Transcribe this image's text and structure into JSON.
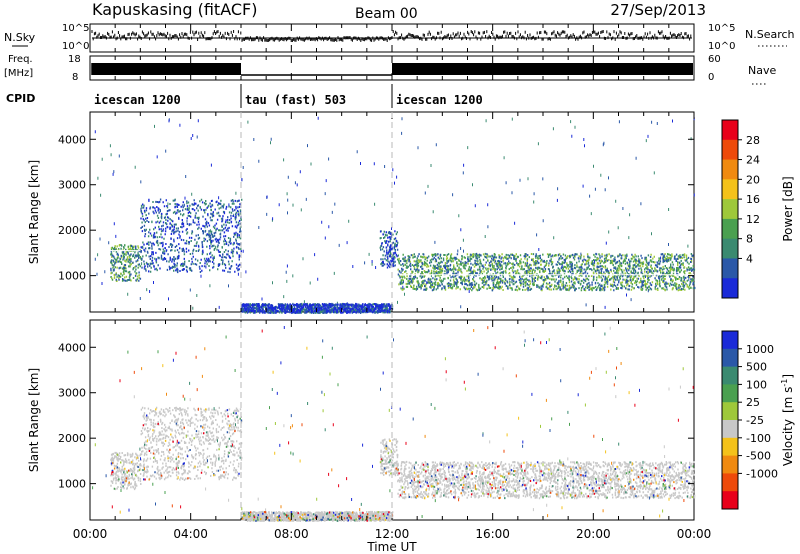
{
  "header": {
    "station": "Kapuskasing (fitACF)",
    "beam": "Beam 00",
    "date": "27/Sep/2013"
  },
  "summary_panels": {
    "nsky_label": "N.Sky",
    "nsearch_label": "N.Search",
    "freq_label_top": "Freq.",
    "freq_label_unit": "[MHz]",
    "nave_label": "Nave",
    "cpid_label": "CPID",
    "noise_left_ticks": [
      "10^5",
      "10^0"
    ],
    "noise_right_ticks": [
      "10^5",
      "10^0"
    ],
    "freq_left_ticks": [
      "18",
      "8"
    ],
    "nave_right_ticks": [
      "60",
      "0"
    ],
    "cpid_segments": [
      {
        "label": "icescan 1200",
        "start": 0,
        "end": 6
      },
      {
        "label": "tau (fast) 503",
        "start": 6,
        "end": 12
      },
      {
        "label": "icescan 1200",
        "start": 12,
        "end": 24
      }
    ]
  },
  "power_colorbar": {
    "label": "Power [dB]",
    "ticks": [
      "28",
      "24",
      "20",
      "16",
      "12",
      "8",
      "4"
    ],
    "colors": [
      "#e8001a",
      "#ee4a0a",
      "#f08a10",
      "#f4c21a",
      "#9ec83a",
      "#4aa050",
      "#3a8a70",
      "#2a58a8",
      "#1a2ad8"
    ]
  },
  "velocity_colorbar": {
    "label": "Velocity",
    "label_unit": "[m s",
    "label_sup": "-1",
    "label_close": "]",
    "ticks": [
      "1000",
      "500",
      "100",
      "25",
      "-25",
      "-100",
      "-500",
      "-1000"
    ],
    "colors": [
      "#1a2ad8",
      "#2a58a8",
      "#3a8a70",
      "#4aa050",
      "#9ec83a",
      "#c8c8c8",
      "#f4c21a",
      "#f08a10",
      "#ee4a0a",
      "#e8001a"
    ]
  },
  "chart_data": [
    {
      "type": "heatmap",
      "panel": "power",
      "ylabel": "Slant Range [km]",
      "xlim": [
        0,
        24
      ],
      "ylim": [
        200,
        4600
      ],
      "yticks": [
        1000,
        2000,
        3000,
        4000
      ],
      "x_major_ticks": [
        0,
        4,
        8,
        12,
        16,
        20,
        24
      ],
      "dashed_lines_at_hours": [
        6,
        12
      ],
      "regions": [
        {
          "t0": 0.8,
          "t1": 2.0,
          "r0": 900,
          "r1": 1700,
          "level": "mid"
        },
        {
          "t0": 2.0,
          "t1": 6.0,
          "r0": 1100,
          "r1": 2700,
          "level": "low"
        },
        {
          "t0": 11.5,
          "t1": 12.2,
          "r0": 1200,
          "r1": 2000,
          "level": "low"
        },
        {
          "t0": 12.2,
          "t1": 24.0,
          "r0": 700,
          "r1": 1500,
          "level": "mid"
        },
        {
          "t0": 6.0,
          "t1": 12.0,
          "r0": 200,
          "r1": 400,
          "level": "low"
        }
      ]
    },
    {
      "type": "heatmap",
      "panel": "velocity",
      "ylabel": "Slant Range [km]",
      "xlabel": "Time UT",
      "xlim": [
        0,
        24
      ],
      "ylim": [
        200,
        4600
      ],
      "yticks": [
        1000,
        2000,
        3000,
        4000
      ],
      "x_tick_labels": [
        "00:00",
        "04:00",
        "08:00",
        "12:00",
        "16:00",
        "20:00",
        "00:00"
      ],
      "x_major_ticks": [
        0,
        4,
        8,
        12,
        16,
        20,
        24
      ],
      "dashed_lines_at_hours": [
        6,
        12
      ]
    }
  ]
}
